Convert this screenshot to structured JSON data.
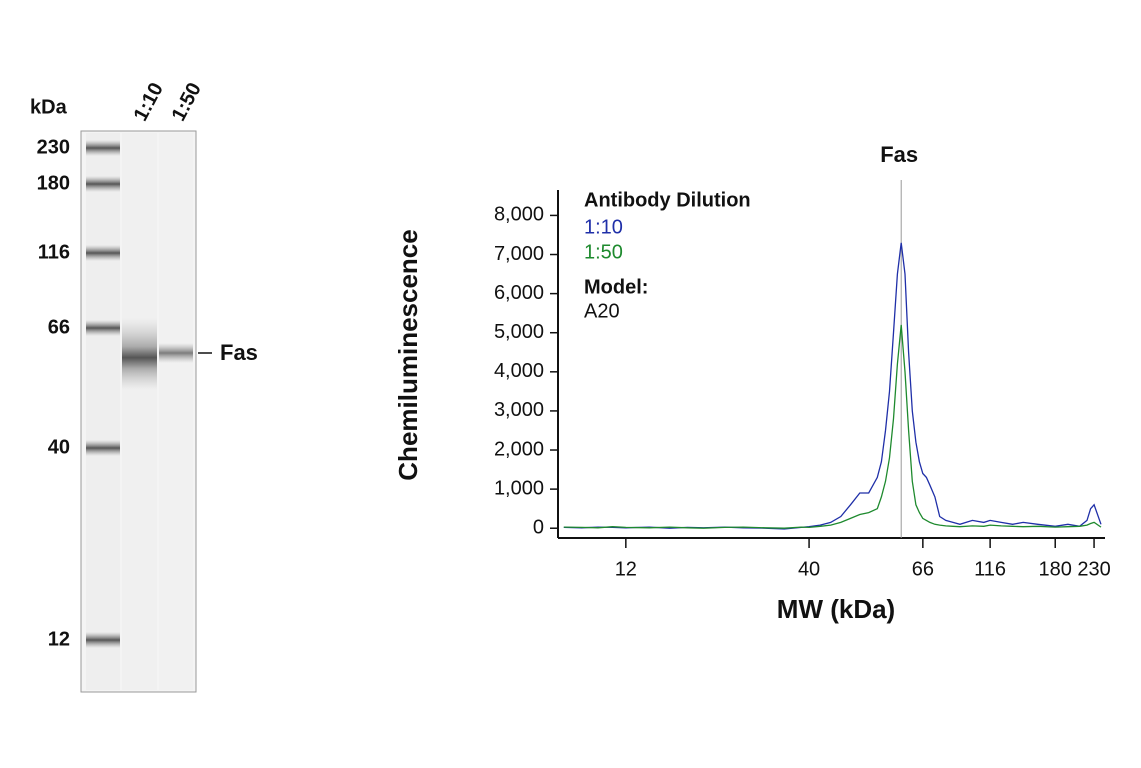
{
  "gel": {
    "unit_label": "kDa",
    "lanes": [
      "1:10",
      "1:50"
    ],
    "ladder": [
      230,
      180,
      116,
      66,
      40,
      12
    ],
    "band_label": "Fas"
  },
  "chart_data": {
    "type": "line",
    "y_label": "Chemiluminescence",
    "x_label": "MW (kDa)",
    "annotation": {
      "text": "Fas",
      "x": 60
    },
    "legend_title": "Antibody Dilution",
    "model_label": "Model:",
    "model": "A20",
    "x": [
      8,
      9,
      10,
      11,
      12,
      14,
      16,
      18,
      20,
      23,
      26,
      30,
      34,
      38,
      40,
      42,
      44,
      46,
      48,
      50,
      52,
      54,
      55,
      56,
      57,
      58,
      59,
      60,
      61,
      62,
      63,
      64,
      65,
      66,
      68,
      70,
      73,
      76,
      80,
      85,
      90,
      100,
      110,
      116,
      125,
      135,
      145,
      160,
      180,
      195,
      210,
      220,
      225,
      230,
      240
    ],
    "series": [
      {
        "name": "1:10",
        "color": "#1f2fa8",
        "values": [
          20,
          10,
          30,
          20,
          10,
          30,
          0,
          20,
          10,
          30,
          10,
          0,
          -20,
          20,
          40,
          80,
          150,
          300,
          600,
          900,
          900,
          1300,
          1700,
          2500,
          3500,
          5000,
          6500,
          7300,
          6500,
          4500,
          3000,
          2200,
          1700,
          1400,
          1300,
          1100,
          800,
          300,
          200,
          150,
          100,
          200,
          150,
          200,
          150,
          100,
          150,
          100,
          50,
          100,
          50,
          200,
          500,
          600,
          100
        ]
      },
      {
        "name": "1:50",
        "color": "#1e8a2e",
        "values": [
          30,
          20,
          10,
          40,
          20,
          10,
          30,
          10,
          0,
          20,
          30,
          10,
          0,
          30,
          20,
          50,
          80,
          150,
          250,
          350,
          400,
          500,
          800,
          1200,
          1800,
          2800,
          4200,
          5200,
          4000,
          2500,
          1200,
          600,
          400,
          250,
          200,
          150,
          100,
          80,
          60,
          50,
          40,
          60,
          50,
          80,
          60,
          50,
          40,
          50,
          30,
          40,
          50,
          80,
          120,
          150,
          30
        ]
      }
    ],
    "xlim": [
      7.7,
      246
    ],
    "xticks": [
      12,
      40,
      66,
      116,
      180,
      230
    ],
    "ylim": [
      -250,
      8650
    ],
    "yticks": [
      0,
      {
        "value": 1000,
        "label": "1,000"
      },
      {
        "value": 2000,
        "label": "2,000"
      },
      {
        "value": 3000,
        "label": "3,000"
      },
      {
        "value": 4000,
        "label": "4,000"
      },
      {
        "value": 5000,
        "label": "5,000"
      },
      {
        "value": 6000,
        "label": "6,000"
      },
      {
        "value": 7000,
        "label": "7,000"
      },
      {
        "value": 8000,
        "label": "8,000"
      }
    ]
  }
}
